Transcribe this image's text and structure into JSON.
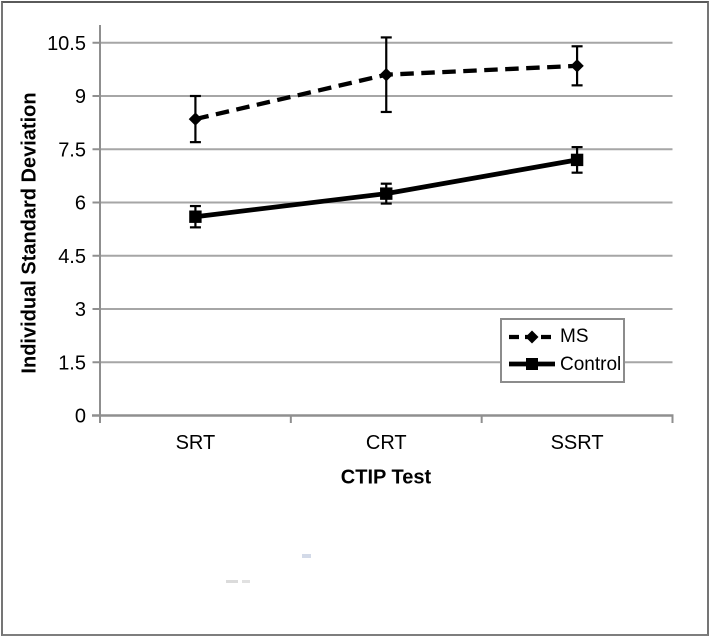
{
  "chart_data": {
    "type": "line",
    "title": "",
    "xlabel": "CTIP Test",
    "ylabel": "Individual Standard Deviation",
    "categories": [
      "SRT",
      "CRT",
      "SSRT"
    ],
    "series": [
      {
        "name": "MS",
        "values": [
          8.35,
          9.6,
          9.85
        ],
        "errors": [
          0.65,
          1.05,
          0.55
        ],
        "line_style": "dashed",
        "marker": "diamond",
        "color": "#000000"
      },
      {
        "name": "Control",
        "values": [
          5.6,
          6.25,
          7.2
        ],
        "errors": [
          0.3,
          0.28,
          0.36
        ],
        "line_style": "solid",
        "marker": "square",
        "color": "#000000"
      }
    ],
    "yticks": [
      0,
      1.5,
      3,
      4.5,
      6,
      7.5,
      9,
      10.5
    ],
    "ytick_labels": [
      "0",
      "1.5",
      "3",
      "4.5",
      "6",
      "7.5",
      "9",
      "10.5"
    ],
    "ylim": [
      0,
      11
    ],
    "grid": true,
    "legend_position": "inside-bottom-right",
    "error_bars": true,
    "colors": {
      "series": "#000000",
      "gridline": "#a6a6a6",
      "axis": "#8f8f8f",
      "legend_border": "#8c8c8c",
      "frame_border": "#757575",
      "text": "#000000",
      "background": "#ffffff"
    }
  }
}
